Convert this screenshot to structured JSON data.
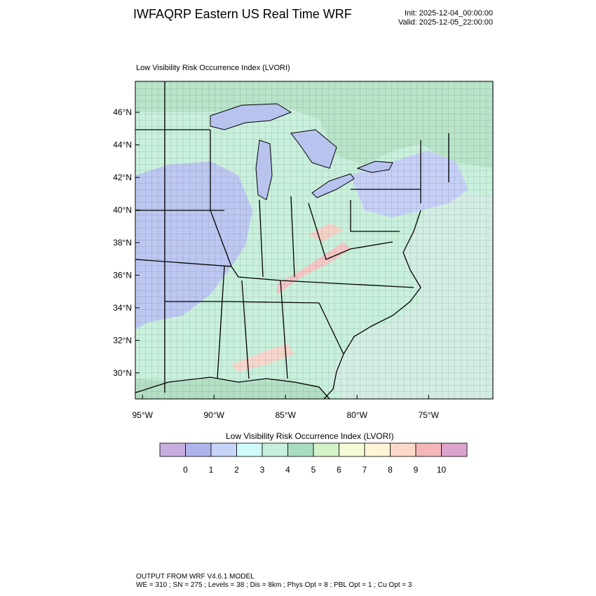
{
  "header": {
    "title": "IWFAQRP Eastern US Real Time WRF",
    "init": "Init: 2025-12-04_00:00:00",
    "valid": "Valid: 2025-12-05_22:00:00"
  },
  "map": {
    "subtitle": "Low Visibility Risk Occurrence Index   (LVORI)",
    "lat_labels": [
      "46°N",
      "44°N",
      "42°N",
      "40°N",
      "38°N",
      "36°N",
      "34°N",
      "32°N",
      "30°N"
    ],
    "lat_values": [
      46,
      44,
      42,
      40,
      38,
      36,
      34,
      32,
      30
    ],
    "lon_labels": [
      "95°W",
      "90°W",
      "85°W",
      "80°W",
      "75°W"
    ],
    "lon_values": [
      -95,
      -90,
      -85,
      -80,
      -75
    ],
    "extent": {
      "lon_min": -95.5,
      "lon_max": -70.5,
      "lat_min": 28.4,
      "lat_max": 47.9
    },
    "colors": {
      "land_default": "#c9f0dc",
      "lake": "#b8c3ee",
      "ocean": "#d3ede4"
    }
  },
  "colorbar": {
    "title": "Low Visibility Risk Occurrence Index  (LVORI)",
    "labels": [
      "0",
      "1",
      "2",
      "3",
      "4",
      "5",
      "6",
      "7",
      "8",
      "9",
      "10"
    ],
    "colors": [
      "#c8aee0",
      "#b0b4ee",
      "#c6d4f8",
      "#d0fafa",
      "#c6f0dc",
      "#a8dcc0",
      "#d4f2c8",
      "#f4fcd6",
      "#fff4d6",
      "#fcd8c8",
      "#f4b6b8",
      "#dca4cc"
    ]
  },
  "footer": {
    "line1": "OUTPUT FROM WRF V4.6.1 MODEL",
    "line2": "WE = 310 ; SN = 275 ; Levels = 38 ; Dis = 8km ; Phys Opt = 8 ; PBL Opt = 1 ; Cu Opt = 3"
  }
}
